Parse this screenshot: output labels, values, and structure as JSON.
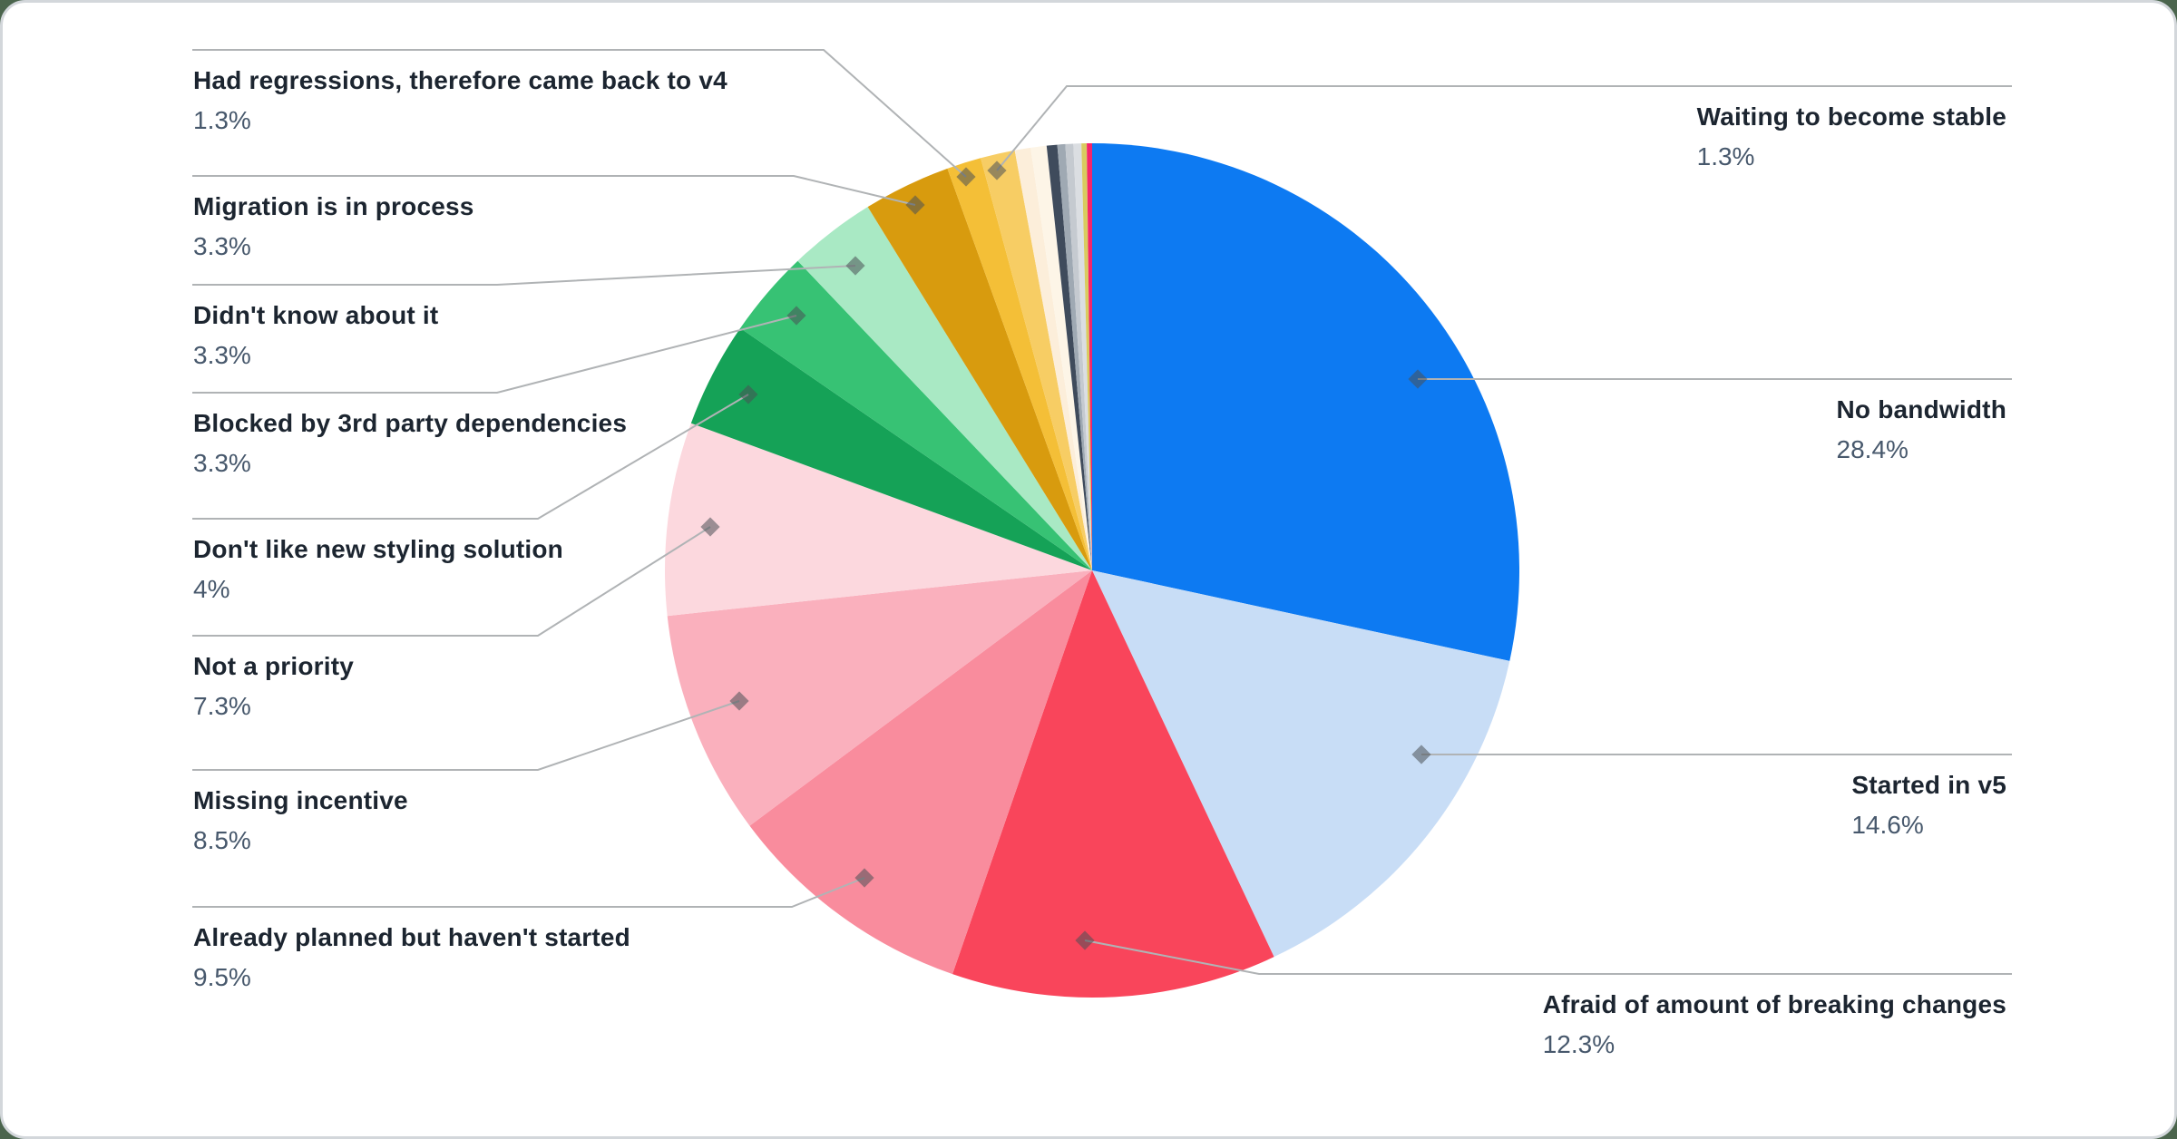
{
  "chart_data": {
    "type": "pie",
    "title": "",
    "legend_position": "none",
    "labels_layout": "callout-leader-lines",
    "start_angle_deg": 0,
    "direction": "clockwise",
    "slices": [
      {
        "label": "No bandwidth",
        "value": 28.4,
        "pct_label": "28.4%",
        "color": "#0d7af2"
      },
      {
        "label": "Started in v5",
        "value": 14.6,
        "pct_label": "14.6%",
        "color": "#c8ddf6"
      },
      {
        "label": "Afraid of amount of breaking changes",
        "value": 12.3,
        "pct_label": "12.3%",
        "color": "#f9455b"
      },
      {
        "label": "Already planned but haven't started",
        "value": 9.5,
        "pct_label": "9.5%",
        "color": "#f98c9d"
      },
      {
        "label": "Missing incentive",
        "value": 8.5,
        "pct_label": "8.5%",
        "color": "#fab0bd"
      },
      {
        "label": "Not a priority",
        "value": 7.3,
        "pct_label": "7.3%",
        "color": "#fcd8de"
      },
      {
        "label": "Don't like new styling solution",
        "value": 4,
        "pct_label": "4%",
        "color": "#15a257"
      },
      {
        "label": "Blocked by 3rd party dependencies",
        "value": 3.3,
        "pct_label": "3.3%",
        "color": "#37c274"
      },
      {
        "label": "Didn't know about it",
        "value": 3.3,
        "pct_label": "3.3%",
        "color": "#a9e9c4"
      },
      {
        "label": "Migration is in process",
        "value": 3.3,
        "pct_label": "3.3%",
        "color": "#d89b0e"
      },
      {
        "label": "Had regressions, therefore came back to v4",
        "value": 1.3,
        "pct_label": "1.3%",
        "color": "#f4bf37"
      },
      {
        "label": "Waiting to become stable",
        "value": 1.3,
        "pct_label": "1.3%",
        "color": "#f7cd64"
      },
      {
        "label": "",
        "value": 0.6,
        "pct_label": "",
        "color": "#fceeda"
      },
      {
        "label": "",
        "value": 0.6,
        "pct_label": "",
        "color": "#fdf5e7"
      },
      {
        "label": "",
        "value": 0.4,
        "pct_label": "",
        "color": "#3f4b5c"
      },
      {
        "label": "",
        "value": 0.3,
        "pct_label": "",
        "color": "#9fa9b3"
      },
      {
        "label": "",
        "value": 0.3,
        "pct_label": "",
        "color": "#c5cad0"
      },
      {
        "label": "",
        "value": 0.3,
        "pct_label": "",
        "color": "#dbdee2"
      },
      {
        "label": "",
        "value": 0.2,
        "pct_label": "",
        "color": "#d9cb5f"
      },
      {
        "label": "",
        "value": 0.2,
        "pct_label": "",
        "color": "#f5256b"
      }
    ]
  },
  "colors": {
    "leader_line": "#b0b3b5",
    "marker": "rgba(75,80,85,0.55)",
    "label_title": "#1c2530",
    "label_pct": "#47586c",
    "card_background": "#ffffff",
    "card_border": "#d3d7db",
    "page_background": "#4b654d"
  }
}
